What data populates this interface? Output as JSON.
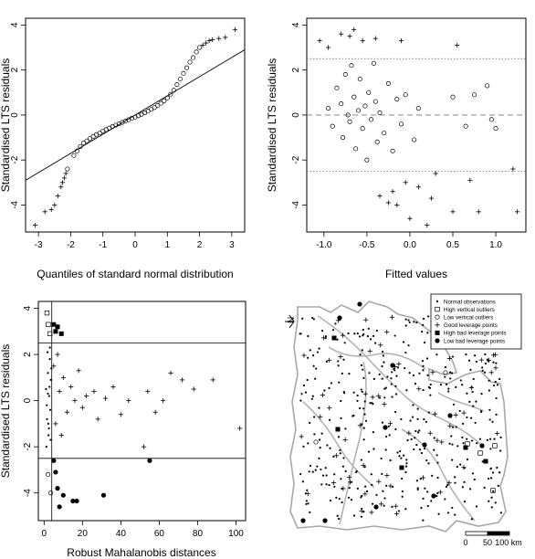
{
  "figure": {
    "panels": 4
  },
  "chart_data": [
    {
      "type": "scatter",
      "panel": "qq-plot",
      "xlabel": "Quantiles of standard normal distribution",
      "ylabel": "Standardised LTS residuals",
      "xlim": [
        -3.4,
        3.4
      ],
      "ylim": [
        -5.2,
        4.3
      ],
      "x_ticks": [
        -3,
        -2,
        -1,
        0,
        1,
        2,
        3
      ],
      "y_ticks": [
        -4,
        -2,
        0,
        2,
        4
      ],
      "reference_line": {
        "x": [
          -3.4,
          3.4
        ],
        "y": [
          -2.9,
          2.9
        ]
      },
      "series": [
        {
          "marker": "circle",
          "x": [
            -2.1,
            -1.9,
            -1.8,
            -1.7,
            -1.6,
            -1.5,
            -1.4,
            -1.3,
            -1.2,
            -1.1,
            -1.0,
            -0.9,
            -0.8,
            -0.7,
            -0.6,
            -0.5,
            -0.4,
            -0.3,
            -0.2,
            -0.1,
            0.0,
            0.1,
            0.2,
            0.3,
            0.4,
            0.5,
            0.6,
            0.7,
            0.8,
            0.9,
            1.0,
            1.1,
            1.2,
            1.3,
            1.4,
            1.5,
            1.6,
            1.7,
            1.8,
            1.9,
            2.0
          ],
          "y": [
            -2.4,
            -1.8,
            -1.6,
            -1.4,
            -1.25,
            -1.15,
            -1.05,
            -0.95,
            -0.87,
            -0.8,
            -0.72,
            -0.65,
            -0.58,
            -0.51,
            -0.45,
            -0.39,
            -0.33,
            -0.27,
            -0.21,
            -0.15,
            -0.09,
            -0.03,
            0.03,
            0.1,
            0.17,
            0.25,
            0.33,
            0.42,
            0.52,
            0.63,
            0.76,
            0.92,
            1.1,
            1.35,
            1.6,
            1.85,
            2.1,
            2.35,
            2.55,
            2.8,
            3.0
          ]
        },
        {
          "marker": "plus",
          "x": [
            -3.1,
            -2.8,
            -2.6,
            -2.5,
            -2.4,
            -2.3,
            -2.25,
            -2.2,
            -2.15,
            2.1,
            2.2,
            2.3,
            2.4,
            2.6,
            2.8,
            3.1
          ],
          "y": [
            -4.9,
            -4.3,
            -4.2,
            -4.0,
            -3.6,
            -3.2,
            -3.0,
            -2.8,
            -2.6,
            3.1,
            3.2,
            3.3,
            3.35,
            3.4,
            3.45,
            3.8
          ]
        }
      ]
    },
    {
      "type": "scatter",
      "panel": "residuals-vs-fitted",
      "xlabel": "Fitted values",
      "ylabel": "Standardised LTS residuals",
      "xlim": [
        -1.2,
        1.35
      ],
      "ylim": [
        -5.2,
        4.3
      ],
      "x_ticks": [
        -1.0,
        -0.5,
        0.0,
        0.5,
        1.0
      ],
      "y_ticks": [
        -4,
        -2,
        0,
        2,
        4
      ],
      "hlines": [
        2.5,
        0,
        -2.5
      ],
      "series": [
        {
          "marker": "circle",
          "x": [
            -0.95,
            -0.9,
            -0.85,
            -0.8,
            -0.78,
            -0.75,
            -0.72,
            -0.7,
            -0.68,
            -0.65,
            -0.63,
            -0.6,
            -0.58,
            -0.55,
            -0.52,
            -0.5,
            -0.48,
            -0.45,
            -0.42,
            -0.4,
            -0.38,
            -0.35,
            -0.3,
            -0.25,
            -0.2,
            -0.15,
            -0.1,
            -0.05,
            0.05,
            0.1,
            0.5,
            0.65,
            0.75,
            0.9,
            0.95,
            1.0
          ],
          "y": [
            0.3,
            -0.5,
            1.2,
            0.5,
            -1.0,
            1.8,
            0.0,
            -0.3,
            2.2,
            0.8,
            -1.5,
            0.2,
            1.6,
            -0.6,
            0.4,
            -2.0,
            1.0,
            -0.2,
            2.3,
            0.6,
            -1.2,
            0.1,
            -0.8,
            1.4,
            -1.6,
            0.7,
            -0.4,
            0.9,
            -1.1,
            0.3,
            0.8,
            -0.5,
            0.9,
            1.3,
            -0.2,
            -0.6
          ]
        },
        {
          "marker": "plus",
          "x": [
            -1.05,
            -0.95,
            -0.8,
            -0.7,
            -0.65,
            -0.55,
            -0.4,
            -0.35,
            -0.25,
            -0.2,
            -0.15,
            -0.1,
            -0.05,
            0.0,
            0.1,
            0.2,
            0.25,
            0.3,
            0.5,
            0.55,
            0.7,
            0.8,
            1.2,
            1.25
          ],
          "y": [
            3.3,
            3.0,
            3.6,
            3.5,
            3.8,
            3.3,
            3.4,
            -3.6,
            -3.9,
            -3.4,
            -4.0,
            3.3,
            -3.0,
            -4.6,
            -3.2,
            -4.9,
            -3.7,
            -2.6,
            -4.3,
            3.1,
            -2.9,
            -4.3,
            -2.4,
            -4.3
          ]
        }
      ]
    },
    {
      "type": "scatter",
      "panel": "residuals-vs-distance",
      "xlabel": "Robust Mahalanobis distances",
      "ylabel": "Standardised LTS residuals",
      "xlim": [
        -3,
        105
      ],
      "ylim": [
        -5.2,
        4.3
      ],
      "x_ticks": [
        0,
        20,
        40,
        60,
        80,
        100
      ],
      "y_ticks": [
        -4,
        -2,
        0,
        2,
        4
      ],
      "hlines": [
        2.5,
        -2.5
      ],
      "vline": 4,
      "series": [
        {
          "marker": "dot",
          "name": "Normal observations",
          "x": [
            1,
            1.5,
            2,
            2.3,
            2.6,
            3,
            3.2,
            3.5,
            1.2,
            1.8,
            2.2,
            2.8,
            3.4,
            3.8,
            1.4,
            2.0,
            2.5,
            3.0
          ],
          "y": [
            0.5,
            -0.8,
            1.2,
            -1.5,
            0.2,
            1.8,
            -0.4,
            0.9,
            -2.0,
            2.1,
            -1.0,
            0.6,
            -1.7,
            1.4,
            -0.2,
            0.3,
            -1.2,
            2.3
          ]
        },
        {
          "marker": "open-square",
          "name": "High vertical outliers",
          "x": [
            1.5,
            2.2,
            3.0
          ],
          "y": [
            3.8,
            3.3,
            2.9
          ]
        },
        {
          "marker": "open-circle",
          "name": "Low vertical outliers",
          "x": [
            2.0,
            3.5
          ],
          "y": [
            -3.2,
            -4.0
          ]
        },
        {
          "marker": "plus",
          "name": "Good leverage points",
          "x": [
            5,
            6,
            7,
            8,
            9,
            10,
            12,
            14,
            16,
            18,
            20,
            22,
            26,
            28,
            32,
            36,
            40,
            44,
            52,
            54,
            58,
            62,
            66,
            72,
            78,
            88,
            102
          ],
          "y": [
            1.5,
            -1.0,
            2.0,
            0.4,
            -1.5,
            1.0,
            -0.5,
            0.6,
            0.0,
            1.3,
            -0.3,
            0.2,
            0.4,
            -0.8,
            0.1,
            0.6,
            -0.6,
            0.0,
            -2.0,
            0.4,
            -0.5,
            0.0,
            1.2,
            0.9,
            0.5,
            0.9,
            -1.2
          ]
        },
        {
          "marker": "filled-square",
          "name": "High bad leverage points",
          "x": [
            5,
            6,
            7,
            9
          ],
          "y": [
            3.3,
            3.0,
            3.2,
            2.9
          ]
        },
        {
          "marker": "filled-circle",
          "name": "Low bad leverage points",
          "x": [
            5,
            6,
            7,
            8,
            10,
            15,
            17,
            31,
            55
          ],
          "y": [
            -2.6,
            -3.1,
            -3.8,
            -4.6,
            -4.1,
            -4.35,
            -4.35,
            -4.1,
            -2.6
          ]
        }
      ]
    },
    {
      "type": "map",
      "panel": "location-map",
      "north_label": "N",
      "scalebar_ticks": [
        "0",
        "50",
        "100 km"
      ],
      "legend": [
        {
          "marker": "dot",
          "label": "Normal observations"
        },
        {
          "marker": "open-square",
          "label": "High vertical outliers"
        },
        {
          "marker": "open-circle",
          "label": "Low vertical outliers"
        },
        {
          "marker": "plus",
          "label": "Good leverage points"
        },
        {
          "marker": "filled-square",
          "label": "High bad leverage points"
        },
        {
          "marker": "filled-circle",
          "label": "Low bad leverage points"
        }
      ]
    }
  ]
}
